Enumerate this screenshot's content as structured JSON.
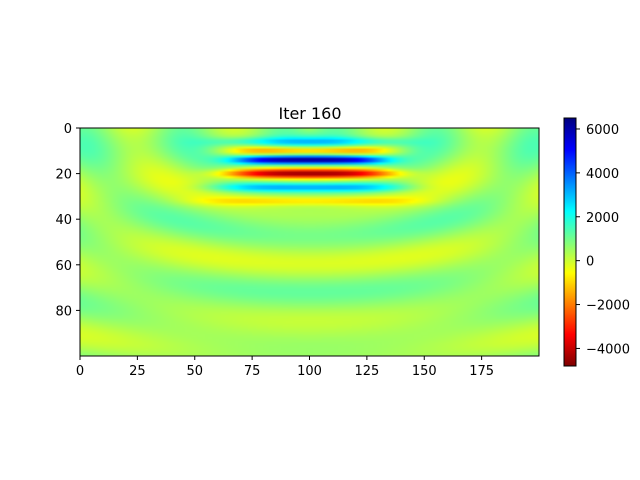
{
  "chart_data": {
    "type": "heatmap",
    "title": "Iter 160",
    "xlabel": "",
    "ylabel": "",
    "x_range": [
      0,
      200
    ],
    "y_range": [
      0,
      100
    ],
    "y_inverted": true,
    "x_ticks": [
      0,
      25,
      50,
      75,
      100,
      125,
      150,
      175
    ],
    "y_ticks": [
      0,
      20,
      40,
      60,
      80
    ],
    "colormap": "jet_r",
    "colorbar": {
      "vmin": -4800,
      "vmax": 6500,
      "ticks": [
        -4000,
        -2000,
        0,
        2000,
        4000,
        6000
      ]
    },
    "grid": false,
    "field_description": {
      "source_x": 100,
      "bands": [
        {
          "depth": 6,
          "value": 1800,
          "half_width": 35
        },
        {
          "depth": 10,
          "value": -2200,
          "half_width": 30
        },
        {
          "depth": 14,
          "value": 6200,
          "half_width": 28
        },
        {
          "depth": 20,
          "value": -4600,
          "half_width": 32
        },
        {
          "depth": 26,
          "value": 2600,
          "half_width": 36
        },
        {
          "depth": 32,
          "value": -1400,
          "half_width": 40
        }
      ],
      "background_value": 500
    }
  }
}
